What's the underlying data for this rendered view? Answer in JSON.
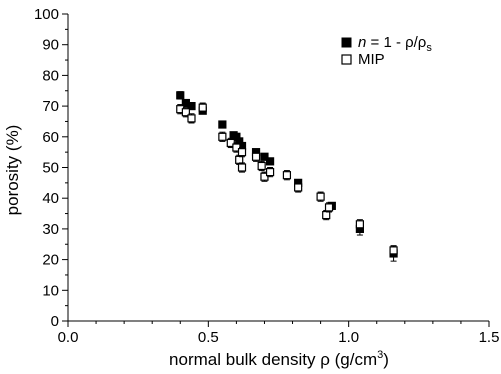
{
  "chart_data": {
    "type": "scatter",
    "xlabel_parts": {
      "main": "normal bulk density ",
      "rho": "ρ",
      "unit_open": " (g/cm",
      "unit_exp": "3",
      "unit_close": ")"
    },
    "ylabel": "porosity (%)",
    "xlim": [
      0.0,
      1.5
    ],
    "ylim": [
      0,
      100
    ],
    "x_ticks": [
      0.0,
      0.5,
      1.0,
      1.5
    ],
    "x_tick_labels": [
      "0.0",
      "0.5",
      "1.0",
      "1.5"
    ],
    "y_ticks": [
      0,
      10,
      20,
      30,
      40,
      50,
      60,
      70,
      80,
      90,
      100
    ],
    "y_tick_labels": [
      "0",
      "10",
      "20",
      "30",
      "40",
      "50",
      "60",
      "70",
      "80",
      "90",
      "100"
    ],
    "legend_position": "top-right",
    "legend": [
      {
        "marker": "filled-square",
        "parts": {
          "n": "n",
          "eq": " = 1 - ρ/ρ",
          "sub": "s"
        }
      },
      {
        "marker": "open-square",
        "text": "MIP"
      }
    ],
    "grid": false,
    "series": [
      {
        "marker": "filled-square",
        "color": "#000000",
        "points": [
          {
            "x": 0.4,
            "y": 73.5,
            "err": 1.2
          },
          {
            "x": 0.42,
            "y": 71.0,
            "err": 1.0
          },
          {
            "x": 0.44,
            "y": 70.0,
            "err": 1.0
          },
          {
            "x": 0.48,
            "y": 68.5,
            "err": 1.0
          },
          {
            "x": 0.55,
            "y": 64.0,
            "err": 1.0
          },
          {
            "x": 0.59,
            "y": 60.5,
            "err": 1.0
          },
          {
            "x": 0.6,
            "y": 60.0,
            "err": 1.0
          },
          {
            "x": 0.61,
            "y": 58.5,
            "err": 1.0
          },
          {
            "x": 0.62,
            "y": 57.0,
            "err": 1.0
          },
          {
            "x": 0.67,
            "y": 55.0,
            "err": 1.0
          },
          {
            "x": 0.7,
            "y": 53.5,
            "err": 1.0
          },
          {
            "x": 0.72,
            "y": 52.0,
            "err": 1.0
          },
          {
            "x": 0.82,
            "y": 45.0,
            "err": 1.0
          },
          {
            "x": 0.94,
            "y": 37.5,
            "err": 1.0
          },
          {
            "x": 1.04,
            "y": 30.0,
            "err": 2.0
          },
          {
            "x": 1.16,
            "y": 22.0,
            "err": 2.5
          }
        ]
      },
      {
        "marker": "open-square",
        "color": "#000000",
        "points": [
          {
            "x": 0.4,
            "y": 69.0,
            "err": 1.5
          },
          {
            "x": 0.42,
            "y": 68.0,
            "err": 1.5
          },
          {
            "x": 0.44,
            "y": 66.0,
            "err": 1.5
          },
          {
            "x": 0.48,
            "y": 69.5,
            "err": 1.5
          },
          {
            "x": 0.55,
            "y": 60.0,
            "err": 1.5
          },
          {
            "x": 0.58,
            "y": 58.0,
            "err": 1.5
          },
          {
            "x": 0.6,
            "y": 56.5,
            "err": 1.5
          },
          {
            "x": 0.61,
            "y": 52.5,
            "err": 1.5
          },
          {
            "x": 0.62,
            "y": 50.0,
            "err": 1.5
          },
          {
            "x": 0.62,
            "y": 55.0,
            "err": 1.5
          },
          {
            "x": 0.67,
            "y": 53.5,
            "err": 1.5
          },
          {
            "x": 0.69,
            "y": 50.5,
            "err": 1.5
          },
          {
            "x": 0.7,
            "y": 47.0,
            "err": 1.5
          },
          {
            "x": 0.72,
            "y": 48.5,
            "err": 1.5
          },
          {
            "x": 0.78,
            "y": 47.5,
            "err": 1.5
          },
          {
            "x": 0.82,
            "y": 43.5,
            "err": 1.5
          },
          {
            "x": 0.9,
            "y": 40.5,
            "err": 1.5
          },
          {
            "x": 0.92,
            "y": 34.5,
            "err": 1.5
          },
          {
            "x": 0.93,
            "y": 37.0,
            "err": 1.5
          },
          {
            "x": 1.04,
            "y": 31.5,
            "err": 1.5
          },
          {
            "x": 1.16,
            "y": 23.0,
            "err": 1.5
          }
        ]
      }
    ]
  }
}
